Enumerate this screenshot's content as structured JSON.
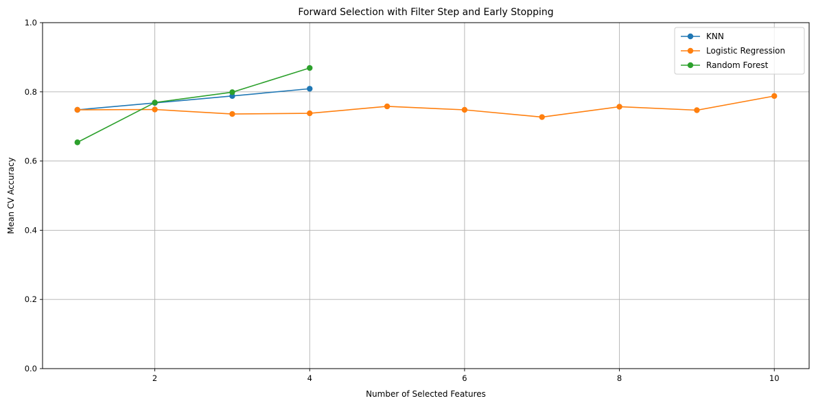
{
  "chart_data": {
    "type": "line",
    "title": "Forward Selection with Filter Step and Early Stopping",
    "xlabel": "Number of Selected Features",
    "ylabel": "Mean CV Accuracy",
    "xlim": [
      0.55,
      10.45
    ],
    "ylim": [
      0,
      1
    ],
    "xticks": [
      2,
      4,
      6,
      8,
      10
    ],
    "yticks": [
      0.0,
      0.2,
      0.4,
      0.6,
      0.8,
      1.0
    ],
    "xtick_labels": [
      "2",
      "4",
      "6",
      "8",
      "10"
    ],
    "ytick_labels": [
      "0.0",
      "0.2",
      "0.4",
      "0.6",
      "0.8",
      "1.0"
    ],
    "grid": true,
    "legend_position": "top-right",
    "marker": "circle",
    "series": [
      {
        "name": "KNN",
        "color": "#1f77b4",
        "x": [
          1,
          2,
          3,
          4
        ],
        "y": [
          0.748,
          0.768,
          0.788,
          0.809
        ]
      },
      {
        "name": "Logistic Regression",
        "color": "#ff7f0e",
        "x": [
          1,
          2,
          3,
          4,
          5,
          6,
          7,
          8,
          9,
          10
        ],
        "y": [
          0.748,
          0.749,
          0.736,
          0.738,
          0.758,
          0.748,
          0.727,
          0.757,
          0.747,
          0.788
        ]
      },
      {
        "name": "Random Forest",
        "color": "#2ca02c",
        "x": [
          1,
          2,
          3,
          4
        ],
        "y": [
          0.654,
          0.769,
          0.799,
          0.869
        ]
      }
    ]
  }
}
